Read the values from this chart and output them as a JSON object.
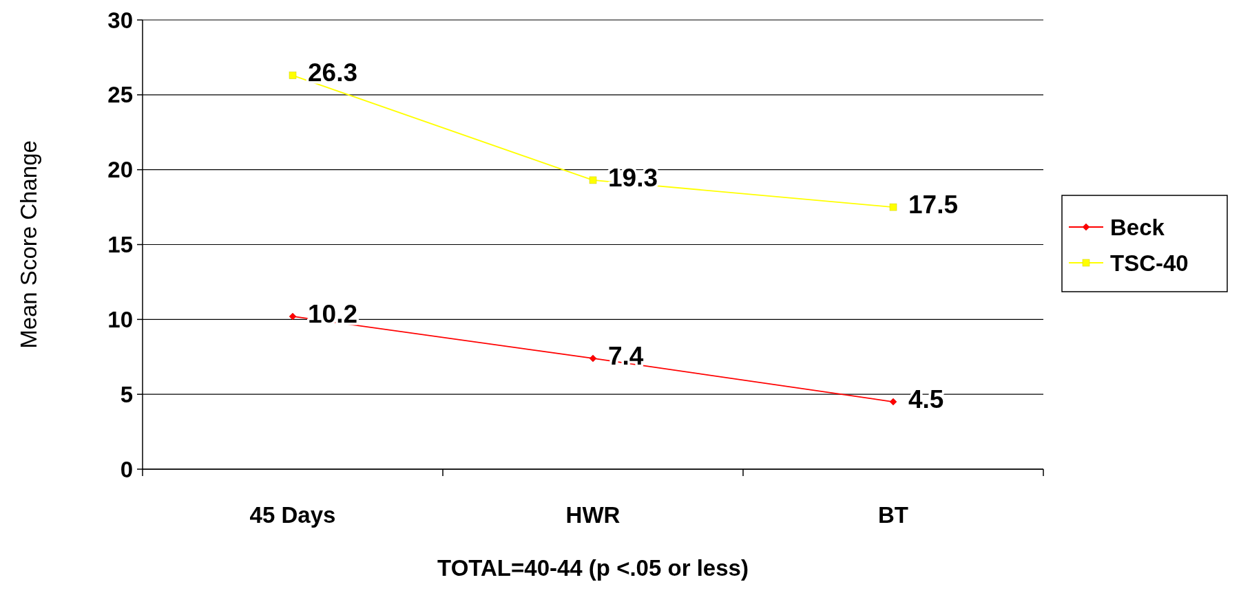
{
  "chart_data": {
    "type": "line",
    "xlabel": "TOTAL=40-44 (p <.05 or less)",
    "ylabel": "Mean Score Change",
    "categories": [
      "45 Days",
      "HWR",
      "BT"
    ],
    "series": [
      {
        "name": "Beck",
        "color": "#ff0000",
        "marker": "diamond",
        "values": [
          10.2,
          7.4,
          4.5
        ]
      },
      {
        "name": "TSC-40",
        "color": "#ffff00",
        "marker": "square",
        "values": [
          26.3,
          19.3,
          17.5
        ]
      }
    ],
    "ylim": [
      0,
      30
    ],
    "yticks": [
      0,
      5,
      10,
      15,
      20,
      25,
      30
    ],
    "grid": "y",
    "legend": "right",
    "data_labels": true
  }
}
